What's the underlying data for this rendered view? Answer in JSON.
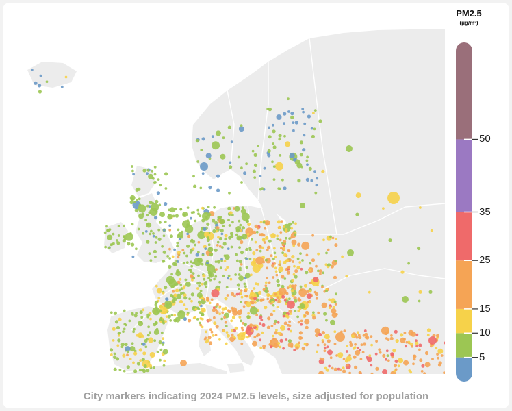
{
  "caption": "City markers indicating 2024 PM2.5 levels, size adjusted for population",
  "legend": {
    "title": "PM2.5",
    "unit": "(μg/m³)",
    "min": 0,
    "max": 70,
    "bands": [
      {
        "from": 0,
        "to": 5,
        "color": "#6b9ac8"
      },
      {
        "from": 5,
        "to": 10,
        "color": "#9cc653"
      },
      {
        "from": 10,
        "to": 15,
        "color": "#f6d24a"
      },
      {
        "from": 15,
        "to": 25,
        "color": "#f5a455"
      },
      {
        "from": 25,
        "to": 35,
        "color": "#ef6a6a"
      },
      {
        "from": 35,
        "to": 50,
        "color": "#9b79c2"
      },
      {
        "from": 50,
        "to": 70,
        "color": "#9a6f7a"
      }
    ],
    "ticks": [
      "5",
      "10",
      "15",
      "25",
      "35",
      "50"
    ]
  },
  "map": {
    "land_color": "#ececec",
    "sea_color": "#ffffff",
    "border_color": "#ffffff"
  }
}
